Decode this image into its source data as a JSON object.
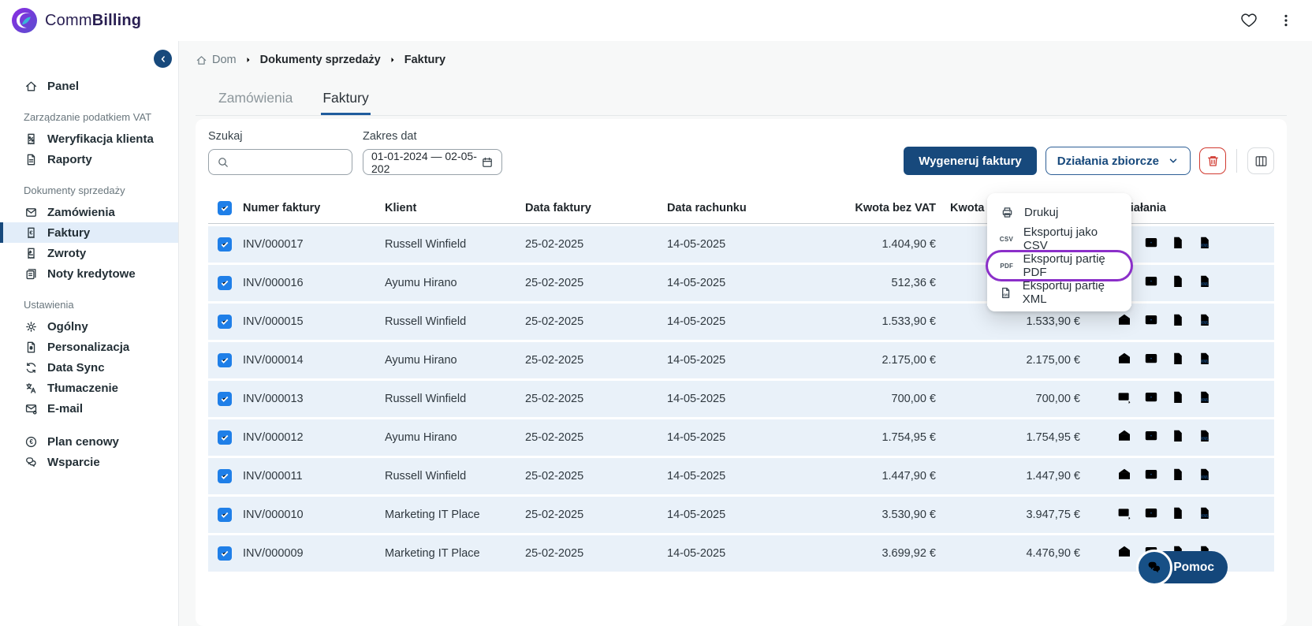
{
  "brand": {
    "part1": "Comm",
    "part2": "Billing"
  },
  "topbar": {
    "icons": [
      "heart",
      "kebab-menu"
    ]
  },
  "sidebar": {
    "sections": [
      {
        "title": "",
        "items": [
          {
            "icon": "home",
            "label": "Panel",
            "active": false
          }
        ]
      },
      {
        "title": "Zarządzanie podatkiem VAT",
        "items": [
          {
            "icon": "receipt-percent",
            "label": "Weryfikacja klienta",
            "active": false
          },
          {
            "icon": "report",
            "label": "Raporty",
            "active": false
          }
        ]
      },
      {
        "title": "Dokumenty sprzedaży",
        "items": [
          {
            "icon": "inbox",
            "label": "Zamówienia",
            "active": false
          },
          {
            "icon": "invoice",
            "label": "Faktury",
            "active": true
          },
          {
            "icon": "return",
            "label": "Zwroty",
            "active": false
          },
          {
            "icon": "credit-note",
            "label": "Noty kredytowe",
            "active": false
          }
        ]
      },
      {
        "title": "Ustawienia",
        "items": [
          {
            "icon": "gear",
            "label": "Ogólny",
            "active": false
          },
          {
            "icon": "personalize",
            "label": "Personalizacja",
            "active": false
          },
          {
            "icon": "sync",
            "label": "Data Sync",
            "active": false
          },
          {
            "icon": "translate",
            "label": "Tłumaczenie",
            "active": false
          },
          {
            "icon": "mail-gear",
            "label": "E-mail",
            "active": false
          }
        ]
      },
      {
        "title": "",
        "items": [
          {
            "icon": "euro-circle",
            "label": "Plan cenowy",
            "active": false
          },
          {
            "icon": "support-chat",
            "label": "Wsparcie",
            "active": false
          }
        ]
      }
    ]
  },
  "breadcrumb": {
    "items": [
      {
        "label": "Dom",
        "muted": true
      },
      {
        "label": "Dokumenty sprzedaży",
        "muted": false
      },
      {
        "label": "Faktury",
        "muted": false
      }
    ]
  },
  "tabs": [
    {
      "label": "Zamówienia",
      "active": false
    },
    {
      "label": "Faktury",
      "active": true
    }
  ],
  "filters": {
    "search_label": "Szukaj",
    "date_label": "Zakres dat",
    "date_value": "01-01-2024 — 02-05-202"
  },
  "toolbar": {
    "generate_label": "Wygeneruj faktury",
    "bulk_label": "Działania zbiorcze"
  },
  "bulk_menu": {
    "items": [
      {
        "icon": "printer",
        "label": "Drukuj",
        "highlighted": false
      },
      {
        "icon": "csv",
        "label": "Eksportuj jako CSV",
        "highlighted": false
      },
      {
        "icon": "pdf",
        "label": "Eksportuj partię PDF",
        "highlighted": true
      },
      {
        "icon": "xml-doc-sm",
        "label": "Eksportuj partię XML",
        "highlighted": false
      }
    ]
  },
  "table": {
    "headers": {
      "number": "Numer faktury",
      "client": "Klient",
      "invoice_date": "Data faktury",
      "bill_date": "Data rachunku",
      "net_amount": "Kwota bez VAT",
      "second_amount": "Kwota za",
      "actions": "Działania"
    },
    "rows": [
      {
        "number": "INV/000017",
        "client": "Russell Winfield",
        "invoice_date": "25-02-2025",
        "bill_date": "14-05-2025",
        "net": "1.404,90 €",
        "second": "",
        "envelope": "open",
        "checked": true
      },
      {
        "number": "INV/000016",
        "client": "Ayumu Hirano",
        "invoice_date": "25-02-2025",
        "bill_date": "14-05-2025",
        "net": "512,36 €",
        "second": "",
        "envelope": "open",
        "checked": true
      },
      {
        "number": "INV/000015",
        "client": "Russell Winfield",
        "invoice_date": "25-02-2025",
        "bill_date": "14-05-2025",
        "net": "1.533,90 €",
        "second": "1.533,90 €",
        "envelope": "open",
        "checked": true
      },
      {
        "number": "INV/000014",
        "client": "Ayumu Hirano",
        "invoice_date": "25-02-2025",
        "bill_date": "14-05-2025",
        "net": "2.175,00 €",
        "second": "2.175,00 €",
        "envelope": "open",
        "checked": true
      },
      {
        "number": "INV/000013",
        "client": "Russell Winfield",
        "invoice_date": "25-02-2025",
        "bill_date": "14-05-2025",
        "net": "700,00 €",
        "second": "700,00 €",
        "envelope": "send",
        "checked": true
      },
      {
        "number": "INV/000012",
        "client": "Ayumu Hirano",
        "invoice_date": "25-02-2025",
        "bill_date": "14-05-2025",
        "net": "1.754,95 €",
        "second": "1.754,95 €",
        "envelope": "open",
        "checked": true
      },
      {
        "number": "INV/000011",
        "client": "Russell Winfield",
        "invoice_date": "25-02-2025",
        "bill_date": "14-05-2025",
        "net": "1.447,90 €",
        "second": "1.447,90 €",
        "envelope": "open",
        "checked": true
      },
      {
        "number": "INV/000010",
        "client": "Marketing IT Place",
        "invoice_date": "25-02-2025",
        "bill_date": "14-05-2025",
        "net": "3.530,90 €",
        "second": "3.947,75 €",
        "envelope": "send",
        "checked": true
      },
      {
        "number": "INV/000009",
        "client": "Marketing IT Place",
        "invoice_date": "25-02-2025",
        "bill_date": "14-05-2025",
        "net": "3.699,92 €",
        "second": "4.476,90 €",
        "envelope": "open",
        "checked": true
      }
    ],
    "row_action_icons": [
      "envelope",
      "preview",
      "export-doc",
      "xml-doc"
    ]
  },
  "help_button": {
    "label": "Pomoc"
  },
  "colors": {
    "primary": "#17497c",
    "checkbox_blue": "#1f7fe8",
    "highlight_purple": "#8b2fc9",
    "danger_red": "#d13a30",
    "row_bg": "#e9f1f9",
    "tab_underline": "#1f5c9d"
  }
}
